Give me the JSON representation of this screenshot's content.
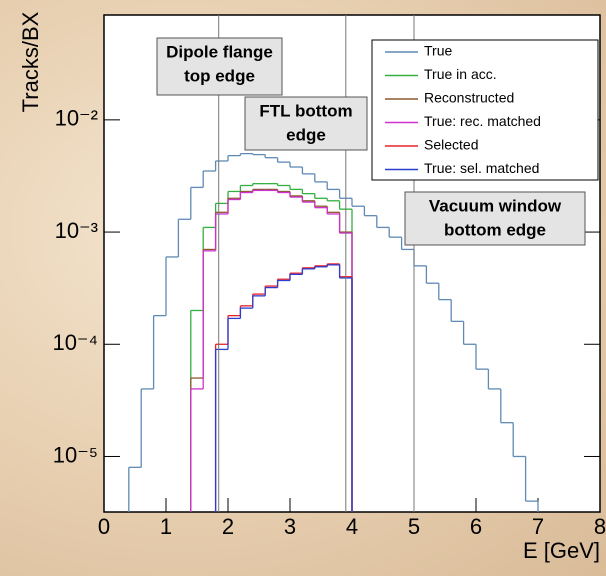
{
  "chart_data": {
    "type": "histogram",
    "ylabel": "Tracks/BX",
    "xlabel": "E [GeV]",
    "log_y": true,
    "xlim": [
      0,
      8
    ],
    "ylim": [
      3.2e-06,
      0.086
    ],
    "xticks": [
      0,
      1,
      2,
      3,
      4,
      5,
      6,
      7,
      8
    ],
    "yticks": [
      {
        "value": 1e-05,
        "label": "10⁻⁵"
      },
      {
        "value": 0.0001,
        "label": "10⁻⁴"
      },
      {
        "value": 0.001,
        "label": "10⁻³"
      },
      {
        "value": 0.01,
        "label": "10⁻²"
      }
    ],
    "legend": "top-right",
    "bins": [
      0,
      0.2,
      0.4,
      0.6,
      0.8,
      1,
      1.2,
      1.4,
      1.6,
      1.8,
      2,
      2.2,
      2.4,
      2.6,
      2.8,
      3,
      3.2,
      3.4,
      3.6,
      3.8,
      4,
      4.2,
      4.4,
      4.6,
      4.8,
      5,
      5.2,
      5.4,
      5.6,
      5.8,
      6,
      6.2,
      6.4,
      6.6,
      6.8,
      7,
      7.2,
      7.4,
      7.6,
      7.8,
      8
    ],
    "series": [
      {
        "name": "True",
        "color": "#5f8ab4",
        "values": [
          null,
          null,
          8e-06,
          4e-05,
          0.00018,
          0.0006,
          0.0013,
          0.0025,
          0.0035,
          0.0043,
          0.0048,
          0.005,
          0.0049,
          0.0046,
          0.0042,
          0.0038,
          0.0033,
          0.0028,
          0.0024,
          0.002,
          0.0017,
          0.0014,
          0.0011,
          0.0009,
          0.0007,
          0.0005,
          0.00035,
          0.00025,
          0.00016,
          0.0001,
          6e-05,
          4e-05,
          2e-05,
          1e-05,
          4e-06,
          null,
          null,
          null,
          null,
          null
        ]
      },
      {
        "name": "True in acc.",
        "color": "#33b040",
        "values": [
          null,
          null,
          null,
          null,
          null,
          null,
          null,
          0.0002,
          0.0011,
          0.0018,
          0.0023,
          0.0026,
          0.0027,
          0.0027,
          0.0026,
          0.0024,
          0.0022,
          0.002,
          0.0019,
          0.0016,
          null,
          null,
          null,
          null,
          null,
          null,
          null,
          null,
          null,
          null,
          null,
          null,
          null,
          null,
          null,
          null,
          null,
          null,
          null,
          null
        ]
      },
      {
        "name": "Reconstructed",
        "color": "#8b5a2b",
        "values": [
          null,
          null,
          null,
          null,
          null,
          null,
          null,
          5e-05,
          0.0007,
          0.0015,
          0.002,
          0.0023,
          0.0024,
          0.0024,
          0.0023,
          0.0021,
          0.0019,
          0.0017,
          0.0015,
          0.001,
          null,
          null,
          null,
          null,
          null,
          null,
          null,
          null,
          null,
          null,
          null,
          null,
          null,
          null,
          null,
          null,
          null,
          null,
          null,
          null
        ]
      },
      {
        "name": "True: rec. matched",
        "color": "#d030d0",
        "values": [
          null,
          null,
          null,
          null,
          null,
          null,
          null,
          4e-05,
          0.00068,
          0.00145,
          0.00195,
          0.00225,
          0.00235,
          0.00235,
          0.00225,
          0.00205,
          0.00185,
          0.00165,
          0.00145,
          0.00098,
          null,
          null,
          null,
          null,
          null,
          null,
          null,
          null,
          null,
          null,
          null,
          null,
          null,
          null,
          null,
          null,
          null,
          null,
          null,
          null
        ]
      },
      {
        "name": "Selected",
        "color": "#e8202a",
        "values": [
          null,
          null,
          null,
          null,
          null,
          null,
          null,
          null,
          null,
          0.0001,
          0.00018,
          0.00022,
          0.00028,
          0.00033,
          0.00038,
          0.00043,
          0.00048,
          0.0005,
          0.00052,
          0.0004,
          null,
          null,
          null,
          null,
          null,
          null,
          null,
          null,
          null,
          null,
          null,
          null,
          null,
          null,
          null,
          null,
          null,
          null,
          null,
          null
        ]
      },
      {
        "name": "True: sel. matched",
        "color": "#2a3fd0",
        "values": [
          null,
          null,
          null,
          null,
          null,
          null,
          null,
          null,
          null,
          9e-05,
          0.00017,
          0.00021,
          0.00027,
          0.00032,
          0.00037,
          0.00042,
          0.00047,
          0.00049,
          0.00051,
          0.00039,
          null,
          null,
          null,
          null,
          null,
          null,
          null,
          null,
          null,
          null,
          null,
          null,
          null,
          null,
          null,
          null,
          null,
          null,
          null,
          null
        ]
      }
    ],
    "annotations": [
      {
        "text": [
          "Dipole flange",
          "top edge"
        ],
        "x": 1.85
      },
      {
        "text": [
          "FTL bottom",
          "edge"
        ],
        "x": 3.9
      },
      {
        "text": [
          "Vacuum window",
          "bottom edge"
        ],
        "x": 5
      }
    ]
  }
}
